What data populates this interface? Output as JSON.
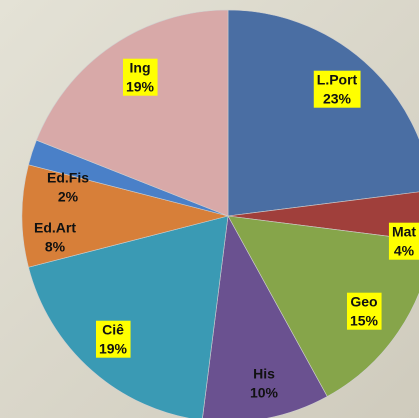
{
  "chart_data": {
    "type": "pie",
    "categories": [
      "L.Port",
      "Mat",
      "Geo",
      "His",
      "Ciê",
      "Ed.Art",
      "Ed.Fis",
      "Ing"
    ],
    "values": [
      23,
      4,
      15,
      10,
      19,
      8,
      2,
      19
    ],
    "value_labels": [
      "23%",
      "4%",
      "15%",
      "10%",
      "19%",
      "8%",
      "2%",
      "19%"
    ],
    "colors": [
      "#4a6ea3",
      "#a03f3b",
      "#86a54a",
      "#6a5190",
      "#3a9ab4",
      "#d77f39",
      "#4a80c8",
      "#d8a9a8"
    ]
  }
}
